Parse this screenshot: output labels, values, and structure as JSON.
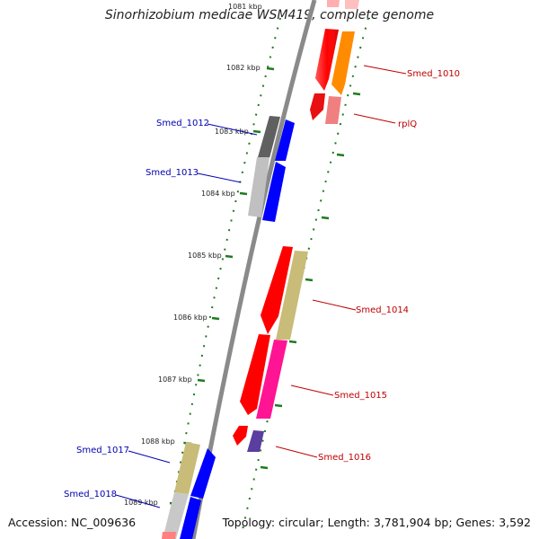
{
  "title": "Sinorhizobium medicae WSM419, complete genome",
  "footer": {
    "accession": "Accession: NC_009636",
    "topology": "Topology: circular; Length: 3,781,904 bp; Genes: 3,592"
  },
  "colors": {
    "backbone": "#8a8a8a",
    "tick": "#1f7a1f",
    "label_forward": "#c00000",
    "label_reverse": "#0000b0"
  },
  "kbp_labels": [
    "1081 kbp",
    "1082 kbp",
    "1083 kbp",
    "1084 kbp",
    "1085 kbp",
    "1086 kbp",
    "1087 kbp",
    "1088 kbp",
    "1089 kbp"
  ],
  "gene_labels": [
    {
      "text": "Smed_1010",
      "strand": "forward"
    },
    {
      "text": "rplQ",
      "strand": "forward"
    },
    {
      "text": "Smed_1012",
      "strand": "reverse"
    },
    {
      "text": "Smed_1013",
      "strand": "reverse"
    },
    {
      "text": "Smed_1014",
      "strand": "forward"
    },
    {
      "text": "Smed_1015",
      "strand": "forward"
    },
    {
      "text": "Smed_1016",
      "strand": "forward"
    },
    {
      "text": "Smed_1017",
      "strand": "reverse"
    },
    {
      "text": "Smed_1018",
      "strand": "reverse"
    }
  ]
}
